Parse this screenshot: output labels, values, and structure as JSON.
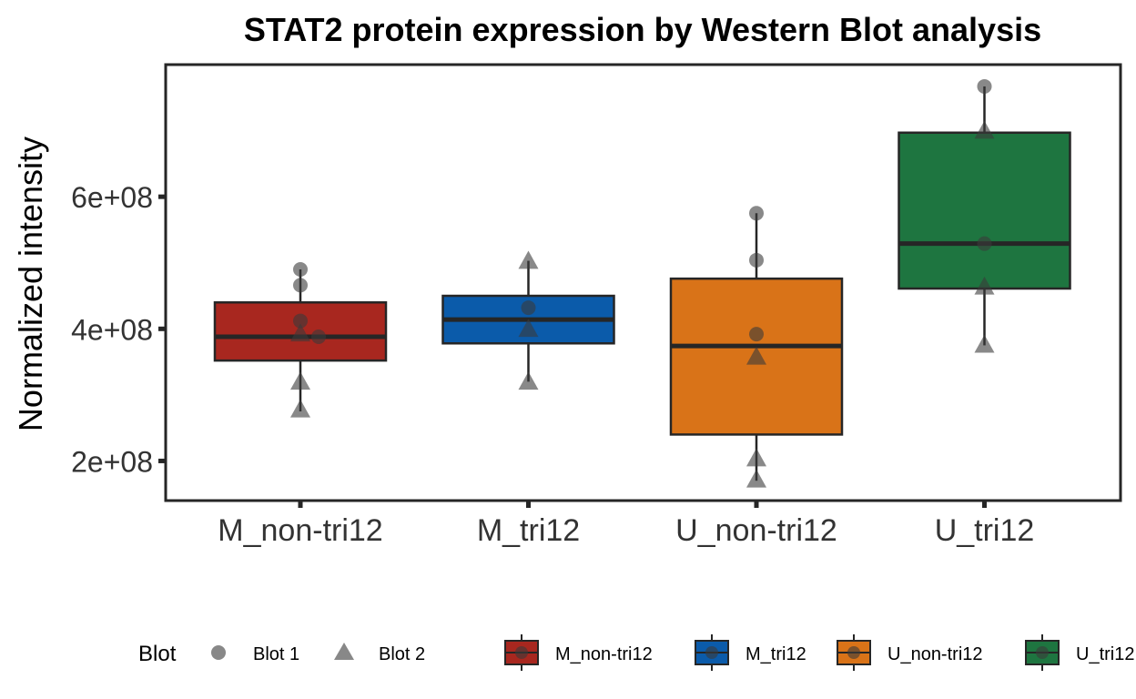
{
  "chart_data": {
    "type": "box",
    "title": "STAT2 protein expression by Western Blot analysis",
    "xlabel": "",
    "ylabel": "Normalized intensity",
    "ylim": [
      140000000,
      800000000
    ],
    "yticks": [
      200000000,
      400000000,
      600000000
    ],
    "ytick_labels": [
      "2e+08",
      "4e+08",
      "6e+08"
    ],
    "categories": [
      "M_non-tri12",
      "M_tri12",
      "U_non-tri12",
      "U_tri12"
    ],
    "colors": [
      "#A8271F",
      "#0B5BAA",
      "#D97318",
      "#1E7540"
    ],
    "boxes": [
      {
        "category": "M_non-tri12",
        "whisker_low": 275000000,
        "q1": 352000000,
        "median": 388000000,
        "q3": 440000000,
        "whisker_high": 490000000
      },
      {
        "category": "M_tri12",
        "whisker_low": 320000000,
        "q1": 378000000,
        "median": 414000000,
        "q3": 450000000,
        "whisker_high": 503000000
      },
      {
        "category": "U_non-tri12",
        "whisker_low": 170000000,
        "q1": 240000000,
        "median": 374000000,
        "q3": 476000000,
        "whisker_high": 575000000
      },
      {
        "category": "U_tri12",
        "whisker_low": 375000000,
        "q1": 461000000,
        "median": 529000000,
        "q3": 697000000,
        "whisker_high": 767000000
      }
    ],
    "points": [
      {
        "category": "M_non-tri12",
        "blot": "Blot 1",
        "value": 490000000,
        "offset": 0
      },
      {
        "category": "M_non-tri12",
        "blot": "Blot 1",
        "value": 466000000,
        "offset": 0
      },
      {
        "category": "M_non-tri12",
        "blot": "Blot 1",
        "value": 412000000,
        "offset": 0
      },
      {
        "category": "M_non-tri12",
        "blot": "Blot 1",
        "value": 388000000,
        "offset": 0.08
      },
      {
        "category": "M_non-tri12",
        "blot": "Blot 2",
        "value": 393000000,
        "offset": 0
      },
      {
        "category": "M_non-tri12",
        "blot": "Blot 2",
        "value": 320000000,
        "offset": 0
      },
      {
        "category": "M_non-tri12",
        "blot": "Blot 2",
        "value": 278000000,
        "offset": 0
      },
      {
        "category": "M_tri12",
        "blot": "Blot 1",
        "value": 432000000,
        "offset": 0
      },
      {
        "category": "M_tri12",
        "blot": "Blot 2",
        "value": 503000000,
        "offset": 0
      },
      {
        "category": "M_tri12",
        "blot": "Blot 2",
        "value": 400000000,
        "offset": 0
      },
      {
        "category": "M_tri12",
        "blot": "Blot 2",
        "value": 320000000,
        "offset": 0
      },
      {
        "category": "U_non-tri12",
        "blot": "Blot 1",
        "value": 575000000,
        "offset": 0
      },
      {
        "category": "U_non-tri12",
        "blot": "Blot 1",
        "value": 504000000,
        "offset": 0
      },
      {
        "category": "U_non-tri12",
        "blot": "Blot 1",
        "value": 392000000,
        "offset": 0
      },
      {
        "category": "U_non-tri12",
        "blot": "Blot 2",
        "value": 358000000,
        "offset": 0
      },
      {
        "category": "U_non-tri12",
        "blot": "Blot 2",
        "value": 204000000,
        "offset": 0
      },
      {
        "category": "U_non-tri12",
        "blot": "Blot 2",
        "value": 172000000,
        "offset": 0
      },
      {
        "category": "U_tri12",
        "blot": "Blot 1",
        "value": 767000000,
        "offset": 0
      },
      {
        "category": "U_tri12",
        "blot": "Blot 1",
        "value": 529000000,
        "offset": 0
      },
      {
        "category": "U_tri12",
        "blot": "Blot 2",
        "value": 700000000,
        "offset": 0
      },
      {
        "category": "U_tri12",
        "blot": "Blot 2",
        "value": 464000000,
        "offset": 0
      },
      {
        "category": "U_tri12",
        "blot": "Blot 2",
        "value": 376000000,
        "offset": 0
      }
    ],
    "legend_position": "bottom",
    "legend_shape_title": "Blot",
    "legend_shape_entries": [
      {
        "label": "Blot 1",
        "shape": "circle"
      },
      {
        "label": "Blot 2",
        "shape": "triangle"
      }
    ],
    "legend_fill_entries": [
      "M_non-tri12",
      "M_tri12",
      "U_non-tri12",
      "U_tri12"
    ],
    "grid": false
  }
}
